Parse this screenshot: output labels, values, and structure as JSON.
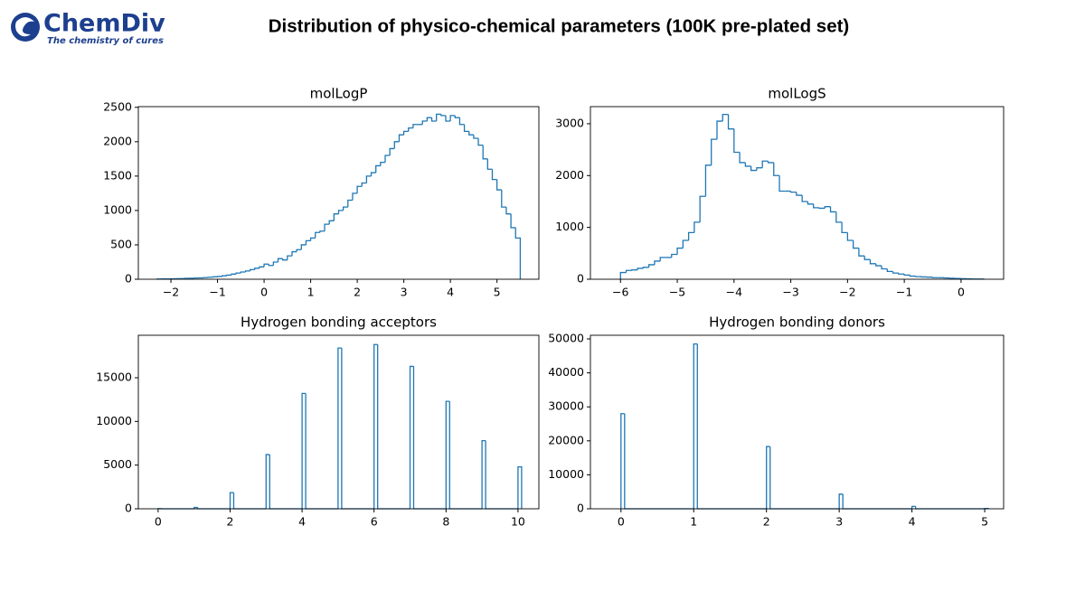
{
  "header": {
    "logo": "ChemDiv",
    "tagline": "The chemistry of cures",
    "title": "Distribution of physico-chemical parameters (100K pre-plated set)"
  },
  "chart_data": [
    {
      "type": "histogram",
      "title": "molLogP",
      "color": "#1f77b4",
      "bins": [
        -2.3,
        -2.2,
        -2.1,
        -2.0,
        -1.9,
        -1.8,
        -1.7,
        -1.6,
        -1.5,
        -1.4,
        -1.3,
        -1.2,
        -1.1,
        -1.0,
        -0.9,
        -0.8,
        -0.7,
        -0.6,
        -0.5,
        -0.4,
        -0.3,
        -0.2,
        -0.1,
        0.0,
        0.1,
        0.2,
        0.3,
        0.4,
        0.5,
        0.6,
        0.7,
        0.8,
        0.9,
        1.0,
        1.1,
        1.2,
        1.3,
        1.4,
        1.5,
        1.6,
        1.7,
        1.8,
        1.9,
        2.0,
        2.1,
        2.2,
        2.3,
        2.4,
        2.5,
        2.6,
        2.7,
        2.8,
        2.9,
        3.0,
        3.1,
        3.2,
        3.3,
        3.4,
        3.5,
        3.6,
        3.7,
        3.8,
        3.9,
        4.0,
        4.1,
        4.2,
        4.3,
        4.4,
        4.5,
        4.6,
        4.7,
        4.8,
        4.9,
        5.0,
        5.1,
        5.2,
        5.3,
        5.4,
        5.5
      ],
      "counts": [
        3,
        4,
        5,
        6,
        8,
        10,
        12,
        15,
        18,
        20,
        25,
        30,
        35,
        40,
        50,
        60,
        75,
        90,
        105,
        120,
        140,
        160,
        180,
        220,
        200,
        250,
        300,
        280,
        340,
        400,
        430,
        500,
        560,
        600,
        680,
        700,
        800,
        850,
        950,
        1000,
        1050,
        1150,
        1250,
        1350,
        1400,
        1500,
        1550,
        1650,
        1700,
        1800,
        1900,
        2000,
        2100,
        2150,
        2200,
        2250,
        2250,
        2300,
        2350,
        2300,
        2400,
        2380,
        2300,
        2380,
        2350,
        2250,
        2150,
        2100,
        2050,
        1950,
        1750,
        1600,
        1450,
        1300,
        1050,
        950,
        750,
        600
      ],
      "xlim": [
        -2.7,
        5.9
      ],
      "ylim": [
        0,
        2510
      ],
      "xticks": [
        {
          "value": -2,
          "label": "−2"
        },
        {
          "value": -1,
          "label": "−1"
        },
        0,
        1,
        2,
        3,
        4,
        5
      ],
      "yticks": [
        0,
        500,
        1000,
        1500,
        2000,
        2500
      ]
    },
    {
      "type": "histogram",
      "title": "molLogS",
      "color": "#1f77b4",
      "bins": [
        -6.0,
        -5.9,
        -5.8,
        -5.7,
        -5.6,
        -5.5,
        -5.4,
        -5.3,
        -5.2,
        -5.1,
        -5.0,
        -4.9,
        -4.8,
        -4.7,
        -4.6,
        -4.5,
        -4.4,
        -4.3,
        -4.2,
        -4.1,
        -4.0,
        -3.9,
        -3.8,
        -3.7,
        -3.6,
        -3.5,
        -3.4,
        -3.3,
        -3.2,
        -3.1,
        -3.0,
        -2.9,
        -2.8,
        -2.7,
        -2.6,
        -2.5,
        -2.4,
        -2.3,
        -2.2,
        -2.1,
        -2.0,
        -1.9,
        -1.8,
        -1.7,
        -1.6,
        -1.5,
        -1.4,
        -1.3,
        -1.2,
        -1.1,
        -1.0,
        -0.9,
        -0.8,
        -0.7,
        -0.6,
        -0.5,
        -0.4,
        -0.3,
        -0.2,
        -0.1,
        0.0,
        0.1,
        0.2,
        0.3,
        0.4
      ],
      "counts": [
        130,
        170,
        180,
        210,
        230,
        280,
        350,
        420,
        420,
        480,
        600,
        750,
        900,
        1100,
        1600,
        2200,
        2700,
        3050,
        3180,
        2900,
        2450,
        2250,
        2180,
        2100,
        2150,
        2280,
        2250,
        2000,
        1700,
        1700,
        1680,
        1620,
        1500,
        1450,
        1380,
        1370,
        1400,
        1300,
        1100,
        900,
        750,
        600,
        450,
        380,
        300,
        260,
        200,
        150,
        120,
        100,
        80,
        60,
        50,
        45,
        40,
        30,
        30,
        25,
        20,
        15,
        10,
        8,
        5,
        3
      ],
      "xlim": [
        -6.53,
        0.75
      ],
      "ylim": [
        0,
        3330
      ],
      "xticks": [
        {
          "value": -6,
          "label": "−6"
        },
        {
          "value": -5,
          "label": "−5"
        },
        {
          "value": -4,
          "label": "−4"
        },
        {
          "value": -3,
          "label": "−3"
        },
        {
          "value": -2,
          "label": "−2"
        },
        {
          "value": -1,
          "label": "−1"
        },
        0
      ],
      "yticks": [
        0,
        1000,
        2000,
        3000
      ]
    },
    {
      "type": "histogram",
      "title": "Hydrogen bonding acceptors",
      "color": "#1f77b4",
      "bins": [
        0,
        0.1,
        1,
        1.1,
        2,
        2.1,
        3,
        3.1,
        4,
        4.1,
        5,
        5.1,
        6,
        6.1,
        7,
        7.1,
        8,
        8.1,
        9,
        9.1,
        10,
        10.1
      ],
      "counts": [
        20,
        0,
        150,
        0,
        1850,
        0,
        6200,
        0,
        13200,
        0,
        18400,
        0,
        18800,
        0,
        16300,
        0,
        12300,
        0,
        7800,
        0,
        4800
      ],
      "xlim": [
        -0.55,
        10.58
      ],
      "ylim": [
        0,
        19860
      ],
      "xticks": [
        0,
        2,
        4,
        6,
        8,
        10
      ],
      "yticks": [
        0,
        5000,
        10000,
        15000
      ]
    },
    {
      "type": "histogram",
      "title": "Hydrogen bonding donors",
      "color": "#1f77b4",
      "bins": [
        0,
        0.05,
        1,
        1.05,
        2,
        2.05,
        3,
        3.05,
        4,
        4.05,
        5,
        5.05
      ],
      "counts": [
        28000,
        0,
        48500,
        0,
        18300,
        0,
        4300,
        0,
        700,
        0,
        100
      ],
      "xlim": [
        -0.42,
        5.26
      ],
      "ylim": [
        0,
        51070
      ],
      "xticks": [
        0,
        1,
        2,
        3,
        4,
        5
      ],
      "yticks": [
        0,
        10000,
        20000,
        30000,
        40000,
        50000
      ]
    }
  ]
}
